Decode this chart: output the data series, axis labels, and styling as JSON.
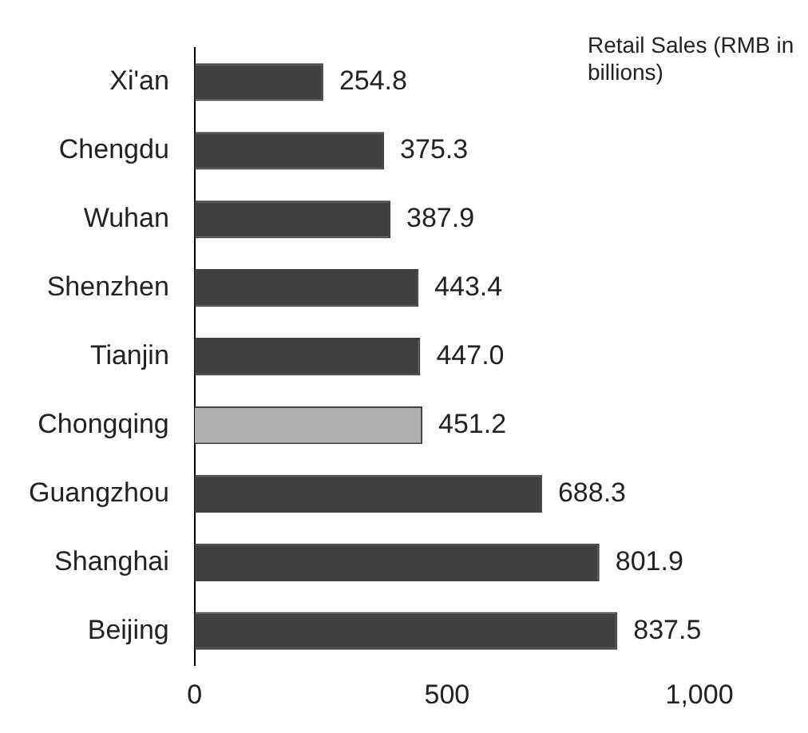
{
  "chart_data": {
    "type": "bar",
    "orientation": "horizontal",
    "title": "Retail Sales (RMB in billions)",
    "categories": [
      "Xi'an",
      "Chengdu",
      "Wuhan",
      "Shenzhen",
      "Tianjin",
      "Chongqing",
      "Guangzhou",
      "Shanghai",
      "Beijing"
    ],
    "values": [
      254.8,
      375.3,
      387.9,
      443.4,
      447.0,
      451.2,
      688.3,
      801.9,
      837.5
    ],
    "colors": [
      "#404040",
      "#404040",
      "#404040",
      "#404040",
      "#404040",
      "#b0b0b0",
      "#404040",
      "#404040",
      "#404040"
    ],
    "value_labels": [
      "254.8",
      "375.3",
      "387.9",
      "443.4",
      "447.0",
      "451.2",
      "688.3",
      "801.9",
      "837.5"
    ],
    "xlim": [
      0,
      1000
    ],
    "xticks": [
      0,
      500,
      {
        "value": 1000,
        "label": "1,000"
      }
    ],
    "grid": false,
    "legend": false
  }
}
